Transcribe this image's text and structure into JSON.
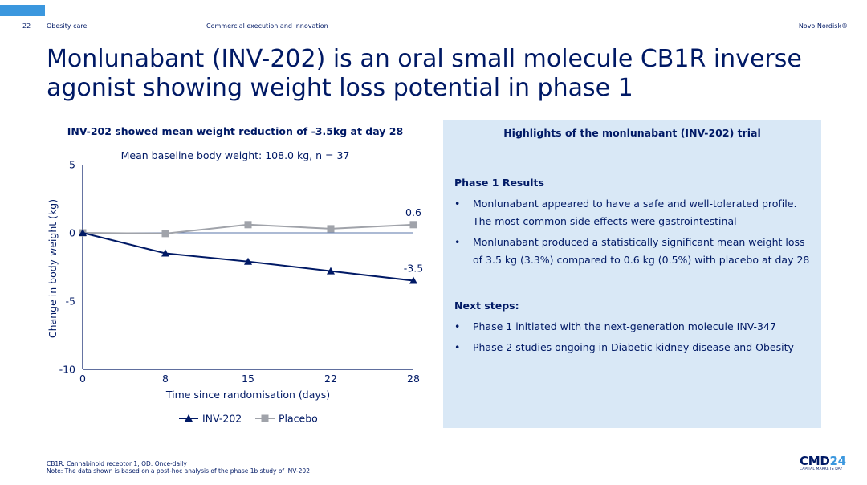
{
  "header": {
    "page_number": "22",
    "section": "Obesity care",
    "subsection": "Commercial execution and innovation",
    "brand": "Novo Nordisk®",
    "accent_color": "#3B97DE"
  },
  "title": "Monlunabant (INV-202) is an oral small molecule CB1R inverse agonist showing weight loss potential in phase 1",
  "chart_data": {
    "type": "line",
    "title": "INV-202 showed mean weight reduction of -3.5kg at day 28",
    "subtitle": "Mean baseline body weight: 108.0 kg, n = 37",
    "xlabel": "Time since randomisation (days)",
    "ylabel": "Change in body weight (kg)",
    "x": [
      "0",
      "8",
      "15",
      "22",
      "28"
    ],
    "ylim": [
      -10,
      5
    ],
    "yticks": [
      "5",
      "0",
      "-5",
      "-10"
    ],
    "ytick_values": [
      5,
      0,
      -5,
      -10
    ],
    "grid": false,
    "legend_position": "bottom",
    "series": [
      {
        "name": "INV-202",
        "values": [
          0,
          -1.5,
          -2.1,
          -2.8,
          -3.5
        ],
        "color": "#001965",
        "marker": "triangle",
        "end_label": "-3.5"
      },
      {
        "name": "Placebo",
        "values": [
          0,
          -0.05,
          0.6,
          0.3,
          0.6
        ],
        "color": "#A0A3AA",
        "marker": "square",
        "end_label": "0.6"
      }
    ]
  },
  "panel": {
    "title": "Highlights of the monlunabant (INV-202) trial",
    "background": "#D9E8F6",
    "results_heading": "Phase 1 Results",
    "results": [
      "Monlunabant appeared to have a safe and well-tolerated profile. The most common side effects were gastrointestinal",
      "Monlunabant produced a statistically significant mean weight loss of 3.5 kg (3.3%) compared to 0.6 kg (0.5%) with placebo at day 28"
    ],
    "next_heading": "Next steps:",
    "next_steps": [
      "Phase 1 initiated with the next-generation molecule INV-347",
      "Phase 2 studies ongoing in Diabetic kidney disease and Obesity"
    ],
    "bullet_glyph": "•"
  },
  "footnotes": [
    "CB1R: Cannabinoid receptor 1; OD: Once-daily",
    "Note: The data shown is based on a post-hoc analysis of the phase 1b study of INV-202"
  ],
  "logo": {
    "main": "CMD",
    "num": "24",
    "sub": "CAPITAL MARKETS DAY"
  }
}
